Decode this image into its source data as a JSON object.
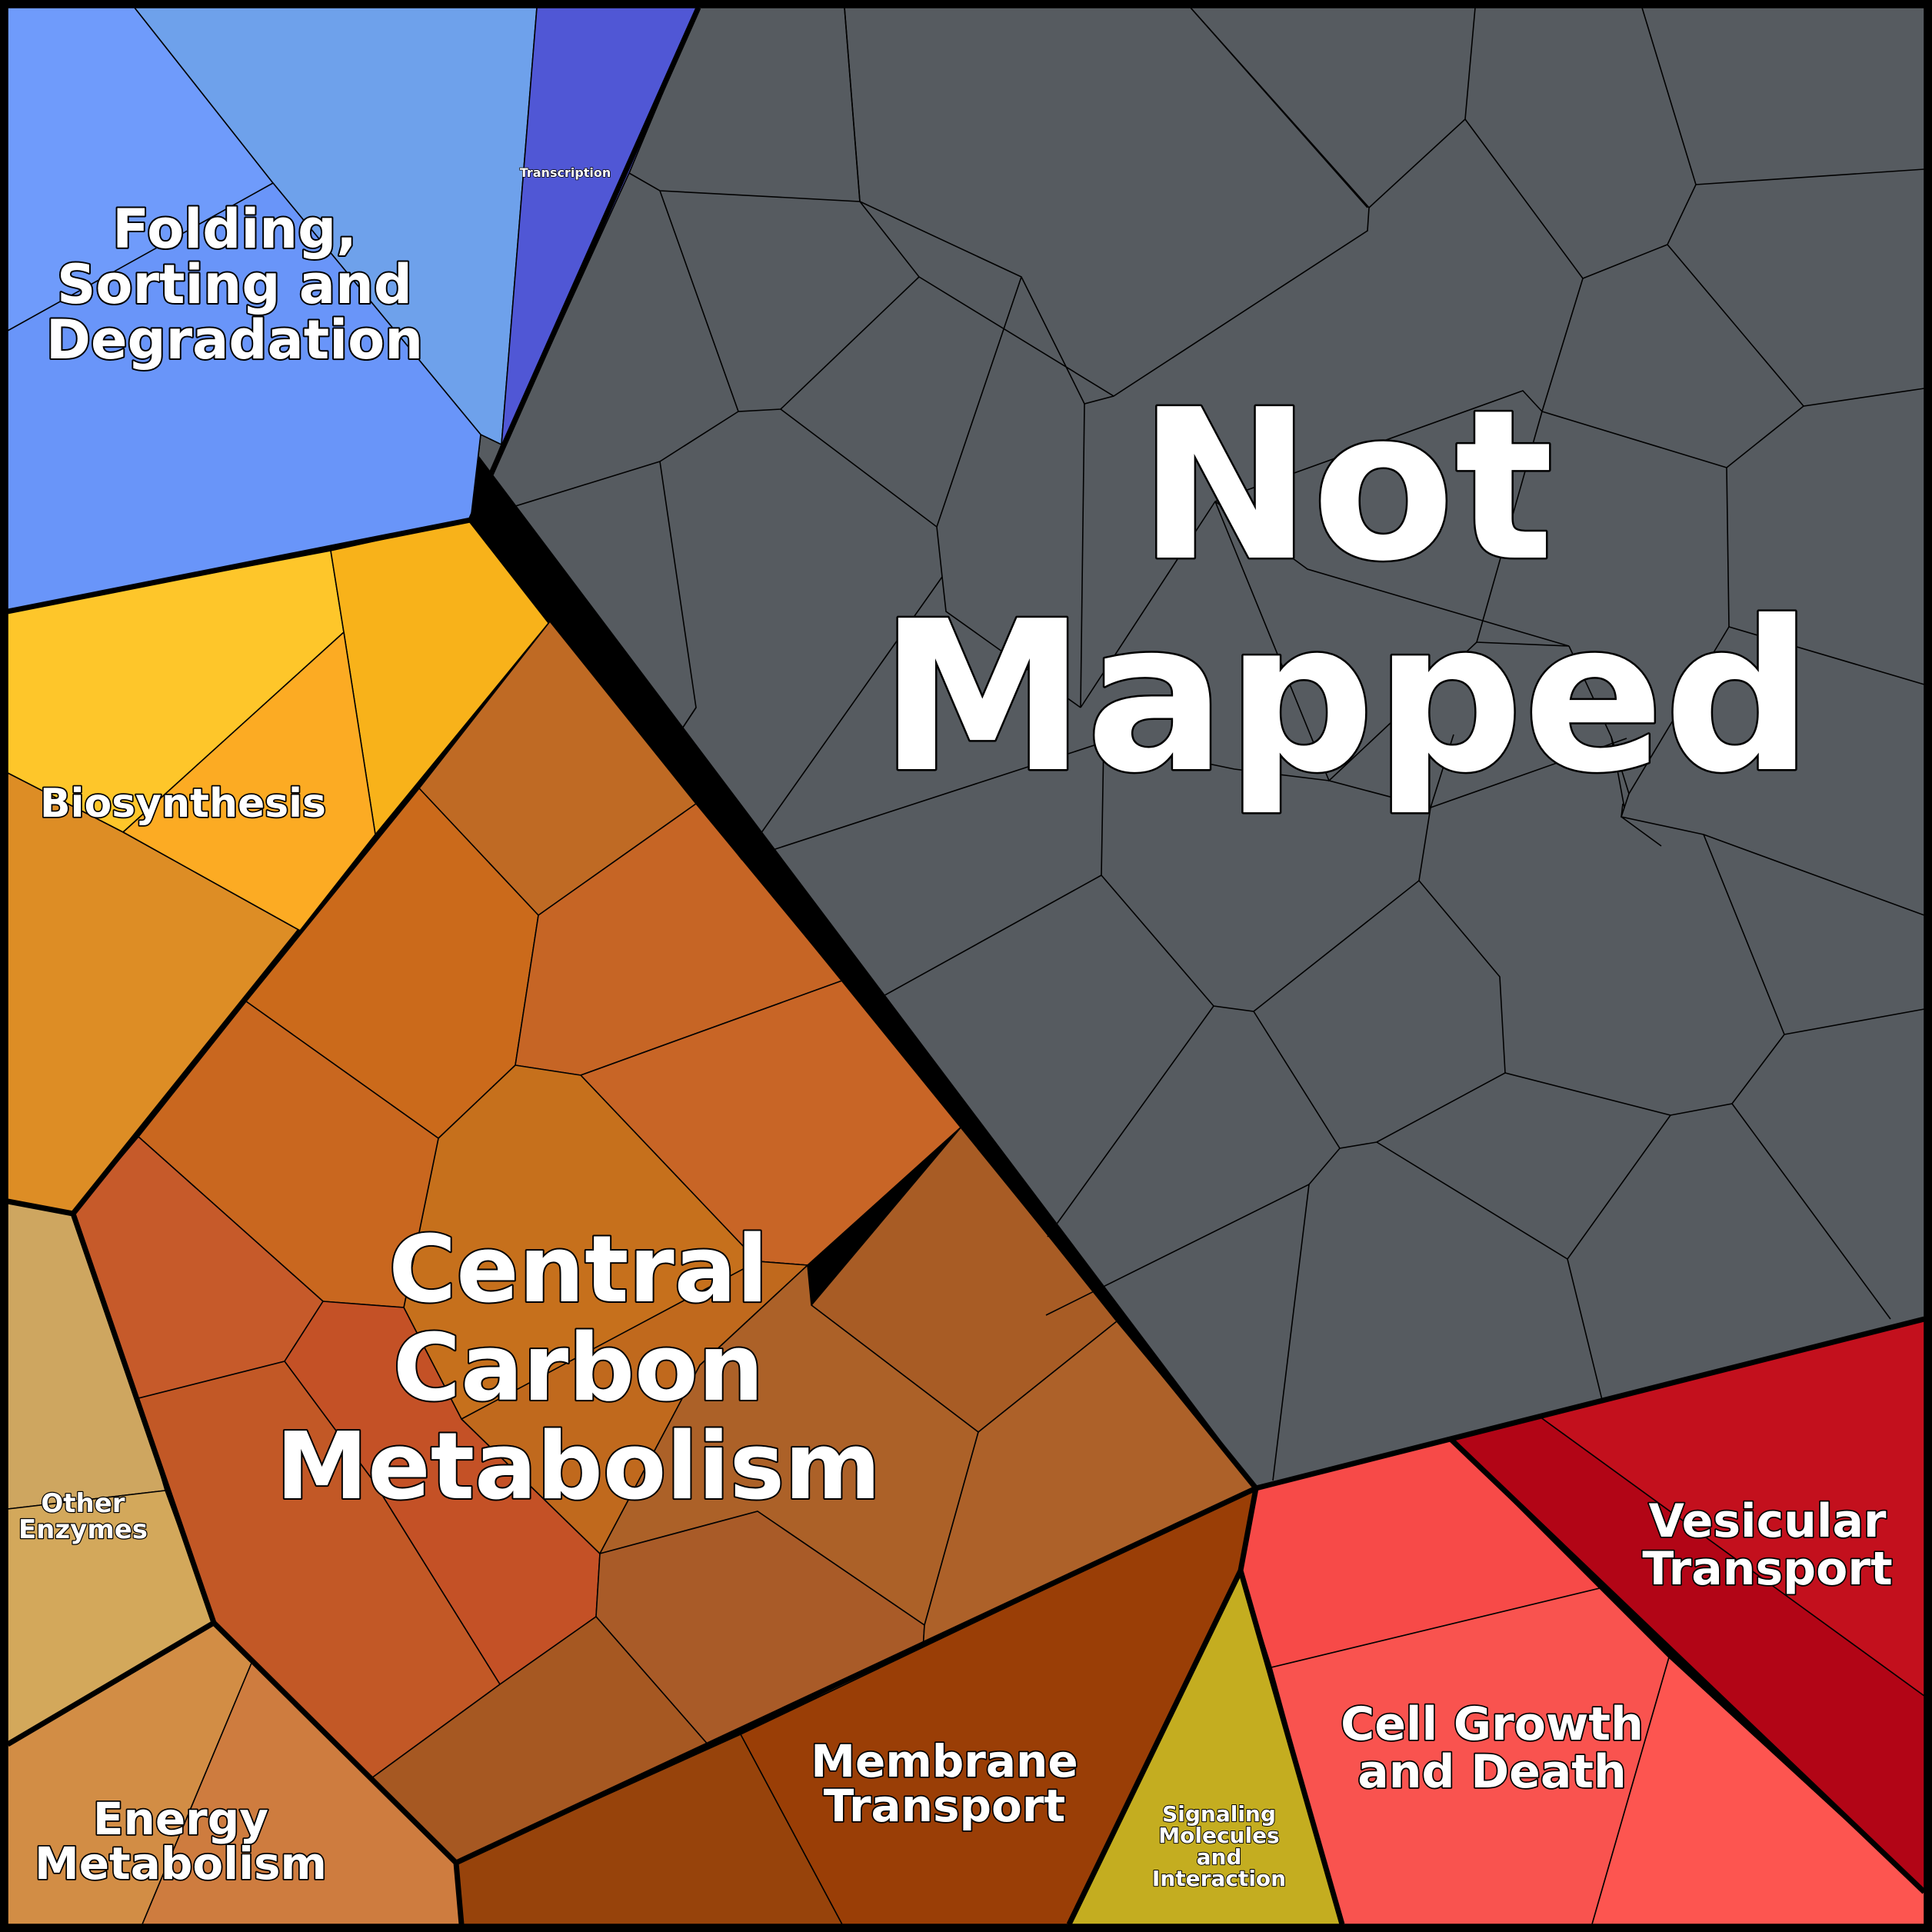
{
  "groups": [
    {
      "id": "not-mapped",
      "name": "Not Mapped",
      "color": "#565b60"
    },
    {
      "id": "folding",
      "name": "Folding, Sorting and Degradation",
      "color": "#6b9af2"
    },
    {
      "id": "transcription",
      "name": "Transcription",
      "color": "#5056d4"
    },
    {
      "id": "biosynthesis",
      "name": "Biosynthesis",
      "color": "#f7b322"
    },
    {
      "id": "central-carbon",
      "name": "Central Carbon Metabolism",
      "color": "#c4621e"
    },
    {
      "id": "other-enzymes",
      "name": "Other Enzymes",
      "color": "#d0a55c"
    },
    {
      "id": "energy",
      "name": "Energy Metabolism",
      "color": "#d38a46"
    },
    {
      "id": "membrane",
      "name": "Membrane Transport",
      "color": "#9a4006"
    },
    {
      "id": "signaling",
      "name": "Signaling Molecules and Interaction",
      "color": "#c4ab22"
    },
    {
      "id": "cell-growth",
      "name": "Cell Growth and Death",
      "color": "#f74c4c"
    },
    {
      "id": "vesicular",
      "name": "Vesicular Transport",
      "color": "#c10f1e"
    }
  ],
  "labels": {
    "not_mapped": [
      "Not",
      "Mapped"
    ],
    "folding": [
      "Folding,",
      "Sorting and",
      "Degradation"
    ],
    "transcription": [
      "Transcription"
    ],
    "biosynthesis": [
      "Biosynthesis"
    ],
    "central_carbon": [
      "Central",
      "Carbon",
      "Metabolism"
    ],
    "other_enzymes": [
      "Other",
      "Enzymes"
    ],
    "energy": [
      "Energy",
      "Metabolism"
    ],
    "membrane": [
      "Membrane",
      "Transport"
    ],
    "signaling": [
      "Signaling",
      "Molecules",
      "and",
      "Interaction"
    ],
    "cell_growth": [
      "Cell Growth",
      "and Death"
    ],
    "vesicular": [
      "Vesicular",
      "Transport"
    ]
  }
}
